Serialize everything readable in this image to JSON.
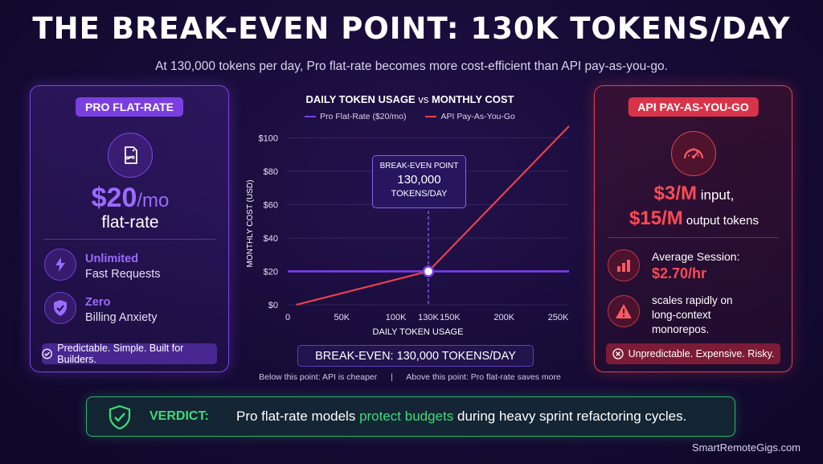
{
  "title": "THE BREAK-EVEN POINT: 130K TOKENS/DAY",
  "subtitle": "At 130,000 tokens per day, Pro flat-rate becomes more cost-efficient than API pay-as-you-go.",
  "pro": {
    "badge": "PRO FLAT-RATE",
    "price": "$20",
    "price_unit": "/mo",
    "price_caption": "flat-rate",
    "feature1_title": "Unlimited",
    "feature1_text": "Fast Requests",
    "feature2_title": "Zero",
    "feature2_text": "Billing Anxiety",
    "footer": "Predictable. Simple. Built for Builders.",
    "icons": [
      "infinity-tag-icon",
      "lightning-icon",
      "shield-check-icon",
      "check-circle-icon"
    ]
  },
  "api": {
    "badge": "API PAY-AS-YOU-GO",
    "price_input": "$3/M",
    "price_input_label": " input,",
    "price_output": "$15/M",
    "price_output_label": " output tokens",
    "session_label": "Average Session:",
    "session_value": "$2.70/hr",
    "warning_text_1": "scales rapidly on",
    "warning_text_2": "long-context",
    "warning_text_3": "monorepos.",
    "footer": "Unpredictable. Expensive. Risky.",
    "icons": [
      "speedometer-icon",
      "bar-chart-icon",
      "warning-icon",
      "x-circle-icon"
    ]
  },
  "chart_data": {
    "type": "line",
    "title_bold_1": "DAILY TOKEN USAGE",
    "title_vs": " vs ",
    "title_bold_2": "MONTHLY COST",
    "xlabel": "DAILY TOKEN USAGE",
    "ylabel": "MONTHLY COST (USD)",
    "xlim": [
      0,
      260000
    ],
    "ylim": [
      0,
      105
    ],
    "x_ticks": [
      0,
      50000,
      100000,
      130000,
      150000,
      200000,
      250000
    ],
    "x_tick_labels": [
      "0",
      "50K",
      "100K",
      "130K",
      "150K",
      "200K",
      "250K"
    ],
    "y_ticks": [
      0,
      20,
      40,
      60,
      80,
      100
    ],
    "y_tick_labels": [
      "$0",
      "$20",
      "$40",
      "$60",
      "$80",
      "$100"
    ],
    "series": [
      {
        "name": "Pro Flat-Rate ($20/mo)",
        "color": "#7a3fe6",
        "x": [
          0,
          260000
        ],
        "y": [
          20,
          20
        ]
      },
      {
        "name": "API Pay-As-You-Go",
        "color": "#e8414b",
        "x": [
          8000,
          130000,
          260000
        ],
        "y": [
          0,
          20,
          107
        ]
      }
    ],
    "annotation": {
      "label_1": "BREAK-EVEN POINT",
      "label_2": "130,000",
      "label_3": "TOKENS/DAY",
      "x": 130000,
      "y": 20
    }
  },
  "break_even_banner": "BREAK-EVEN: 130,000 TOKENS/DAY",
  "note_left": "Below this point: API is cheaper",
  "note_sep": "|",
  "note_right": "Above this point: Pro flat-rate saves more",
  "verdict": {
    "label": "VERDICT:",
    "text_1": "Pro flat-rate models ",
    "text_highlight": "protect budgets",
    "text_2": " during heavy sprint refactoring cycles."
  },
  "watermark": "SmartRemoteGigs.com"
}
